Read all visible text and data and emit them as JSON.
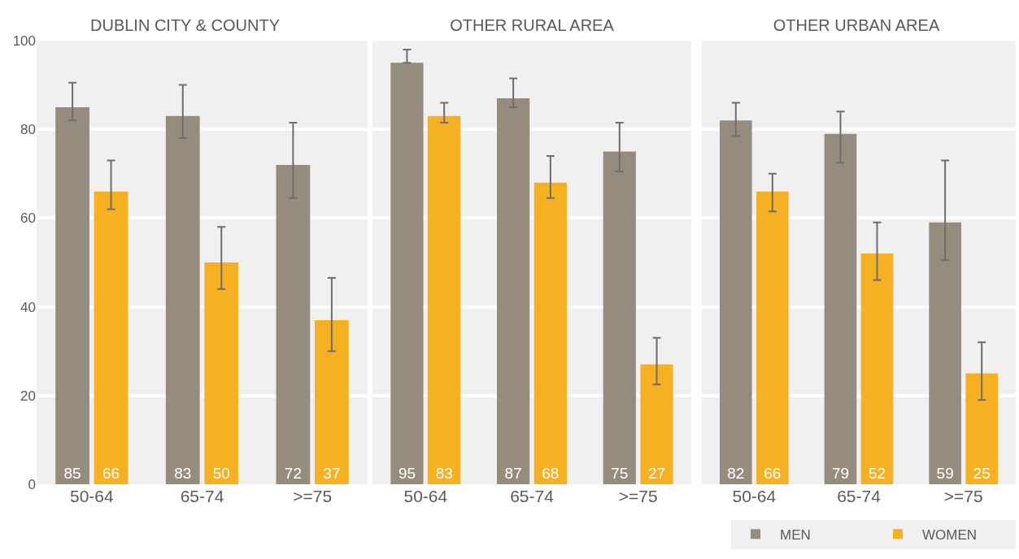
{
  "chart_data": [
    {
      "type": "bar",
      "title": "DUBLIN CITY & COUNTY",
      "categories": [
        "50-64",
        "65-74",
        ">=75"
      ],
      "series": [
        {
          "color": "#968c7e",
          "values": [
            85,
            83,
            72
          ],
          "errors": [
            [
              82,
              90.5
            ],
            [
              78,
              90
            ],
            [
              64.5,
              81.5
            ]
          ]
        },
        {
          "color": "#f5b122",
          "values": [
            66,
            50,
            37
          ],
          "errors": [
            [
              62,
              73
            ],
            [
              44,
              58
            ],
            [
              30,
              46.5
            ]
          ]
        }
      ],
      "ylim": [
        0,
        100
      ],
      "yticks": [
        0,
        20,
        40,
        60,
        80,
        100
      ],
      "grid": "y",
      "data_labels": true,
      "legend": false
    },
    {
      "type": "bar",
      "title": "OTHER RURAL AREA",
      "categories": [
        "50-64",
        "65-74",
        ">=75"
      ],
      "series": [
        {
          "color": "#968c7e",
          "values": [
            95,
            87,
            75
          ],
          "errors": [
            [
              95,
              98
            ],
            [
              85,
              91.5
            ],
            [
              70.5,
              81.5
            ]
          ]
        },
        {
          "color": "#f5b122",
          "values": [
            83,
            68,
            27
          ],
          "errors": [
            [
              81.5,
              86
            ],
            [
              64.5,
              74
            ],
            [
              22.5,
              33
            ]
          ]
        }
      ],
      "ylim": [
        0,
        100
      ],
      "yticks": [
        0,
        20,
        40,
        60,
        80,
        100
      ],
      "grid": "y",
      "data_labels": true,
      "tick_labels": "x",
      "legend": false
    },
    {
      "type": "bar",
      "title": "OTHER URBAN AREA",
      "categories": [
        "50-64",
        "65-74",
        ">=75"
      ],
      "series": [
        {
          "name": "MEN",
          "color": "#968c7e",
          "values": [
            82,
            79,
            59
          ],
          "errors": [
            [
              78.5,
              86
            ],
            [
              72.5,
              84
            ],
            [
              50.5,
              73
            ]
          ]
        },
        {
          "name": "WOMEN",
          "color": "#f5b122",
          "values": [
            66,
            52,
            25
          ],
          "errors": [
            [
              61.5,
              70
            ],
            [
              46,
              59
            ],
            [
              19,
              32
            ]
          ]
        }
      ],
      "ylim": [
        0,
        100
      ],
      "yticks": [
        0,
        20,
        40,
        60,
        80,
        100
      ],
      "grid": "y",
      "data_labels": true,
      "tick_labels": "x",
      "legend": "bottom right"
    }
  ]
}
